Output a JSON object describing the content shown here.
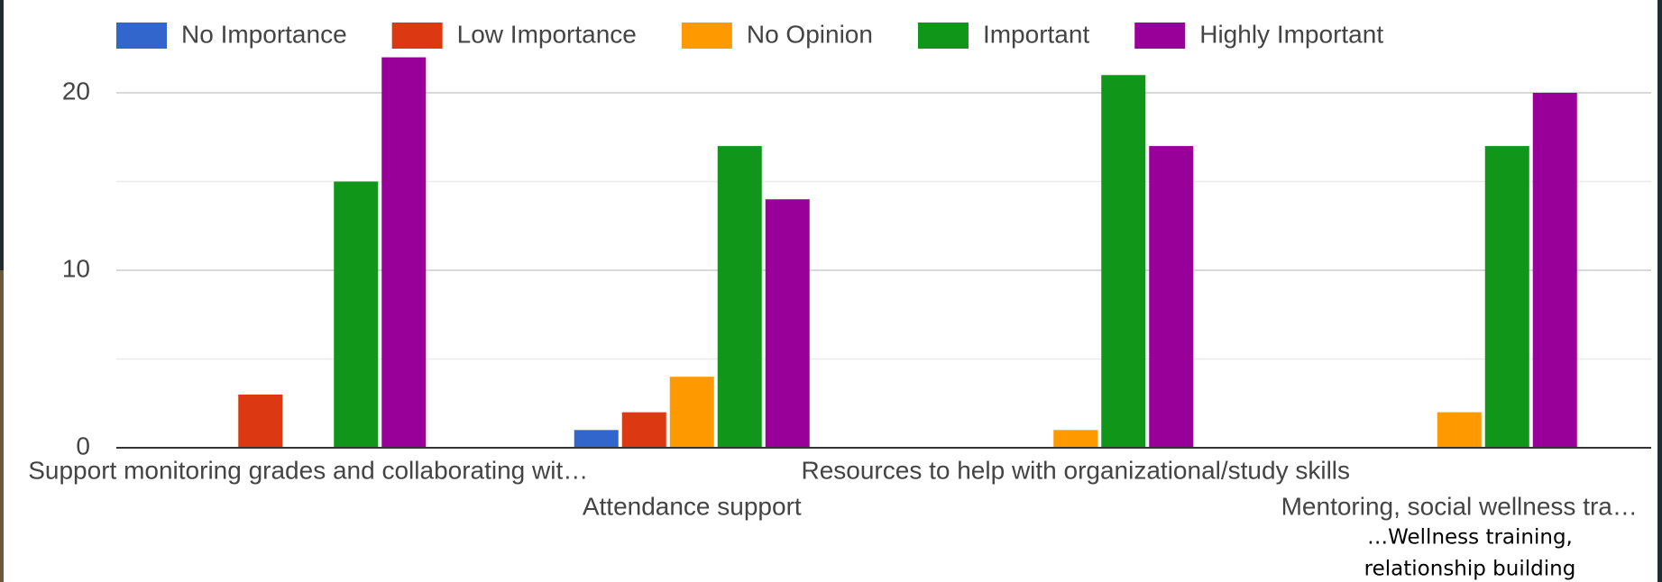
{
  "chart_data": {
    "type": "bar",
    "categories": [
      "Support monitoring grades and collaborating wit…",
      "Attendance support",
      "Resources to help with organizational/study skills",
      "Mentoring, social wellness tra…"
    ],
    "series": [
      {
        "name": "No Importance",
        "color": "#3366cc",
        "values": [
          0,
          1,
          0,
          0
        ]
      },
      {
        "name": "Low Importance",
        "color": "#dc3912",
        "values": [
          3,
          2,
          0,
          0
        ]
      },
      {
        "name": "No Opinion",
        "color": "#ff9900",
        "values": [
          0,
          4,
          1,
          2
        ]
      },
      {
        "name": "Important",
        "color": "#109618",
        "values": [
          15,
          17,
          21,
          17
        ]
      },
      {
        "name": "Highly Important",
        "color": "#990099",
        "values": [
          22,
          14,
          17,
          20
        ]
      }
    ],
    "ylim": [
      0,
      25
    ],
    "yticks": [
      0,
      10,
      20
    ],
    "minor_yticks": [
      5,
      15
    ],
    "grid": true,
    "legend": "top",
    "annotation_lines": [
      "…Wellness training,",
      "relationship building"
    ]
  }
}
